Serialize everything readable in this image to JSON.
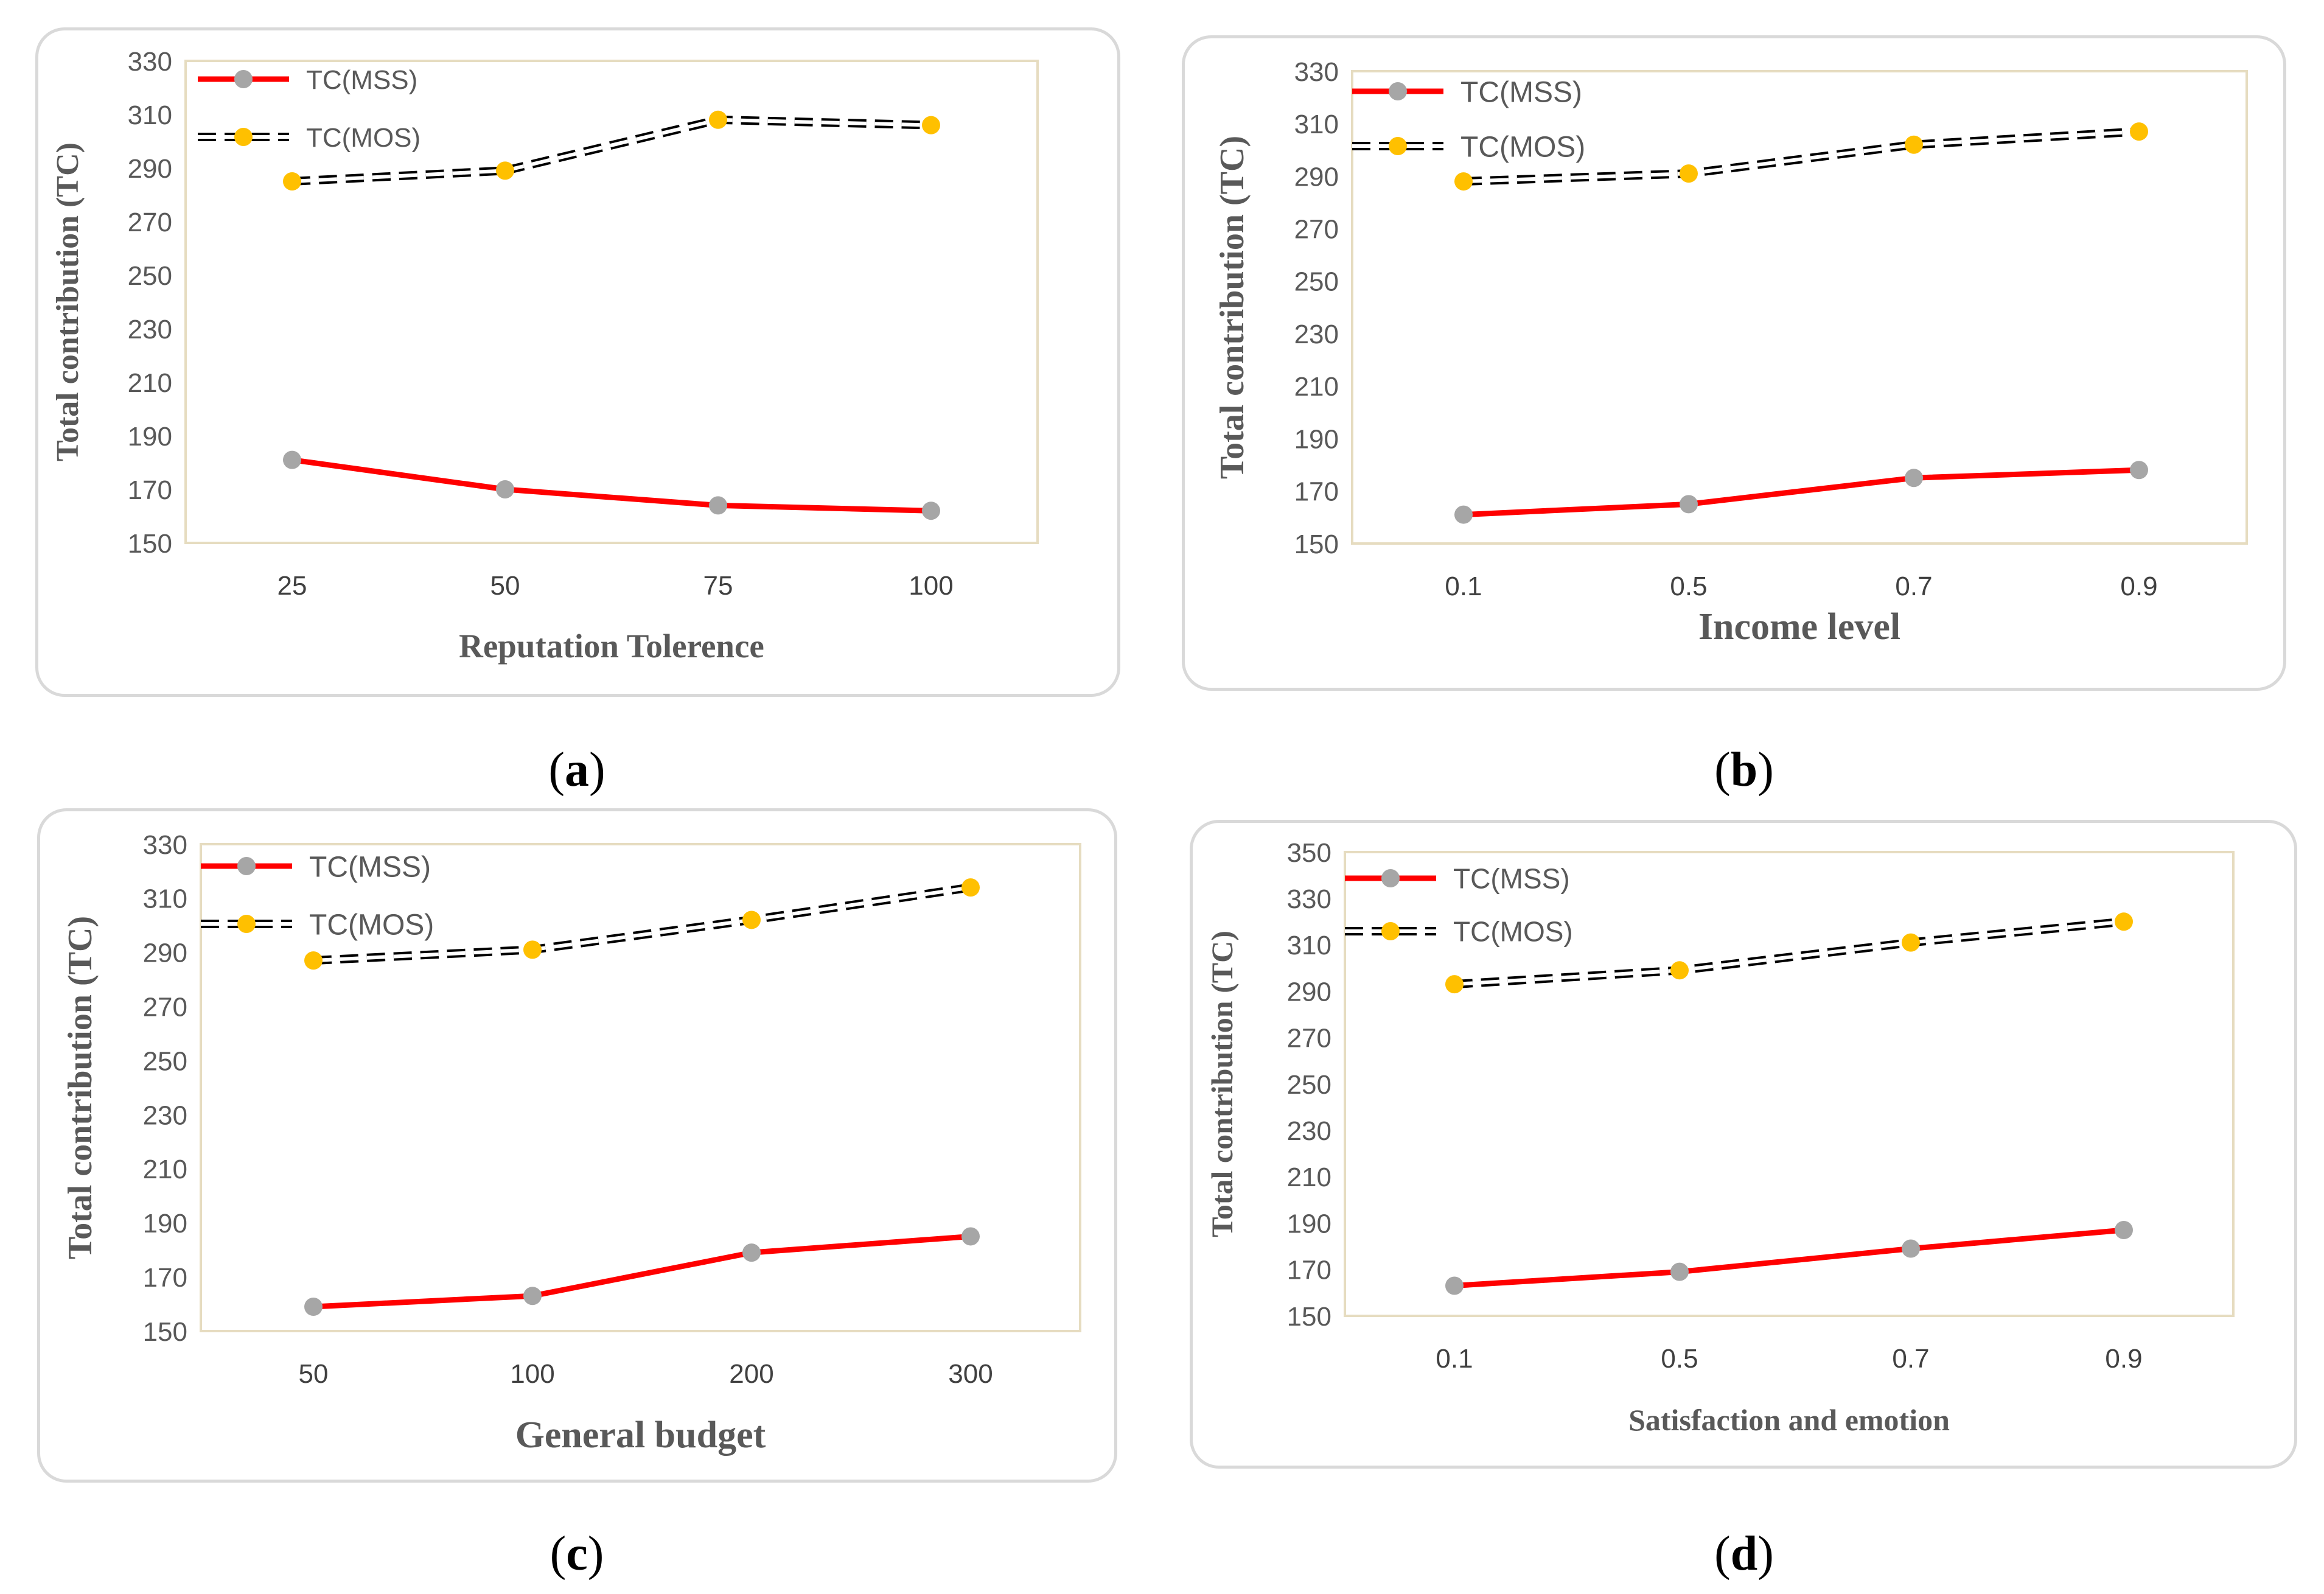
{
  "colors": {
    "mss_line": "#ff0000",
    "mss_marker": "#a6a6a6",
    "mos_line": "#000000",
    "mos_marker": "#ffc000",
    "plot_border": "#e6dcc0",
    "axis_text": "#595959"
  },
  "chart_data": [
    {
      "id": "a",
      "type": "line",
      "caption_label": "a",
      "xlabel": "Reputation Tolerence",
      "ylabel": "Total contribution (TC)",
      "categories": [
        "25",
        "50",
        "75",
        "100"
      ],
      "ylim": [
        150,
        330
      ],
      "yticks": [
        "150",
        "170",
        "190",
        "210",
        "230",
        "250",
        "270",
        "290",
        "310",
        "330"
      ],
      "legend_position": "top-left",
      "series": [
        {
          "name": "TC(MSS)",
          "style": "solid-red",
          "values": [
            181,
            170,
            164,
            162
          ]
        },
        {
          "name": "TC(MOS)",
          "style": "dashed-black",
          "values": [
            285,
            289,
            308,
            306
          ]
        }
      ]
    },
    {
      "id": "b",
      "type": "line",
      "caption_label": "b",
      "xlabel": "Income level",
      "ylabel": "Total contribution (TC)",
      "categories": [
        "0.1",
        "0.5",
        "0.7",
        "0.9"
      ],
      "ylim": [
        150,
        330
      ],
      "yticks": [
        "150",
        "170",
        "190",
        "210",
        "230",
        "250",
        "270",
        "290",
        "310",
        "330"
      ],
      "legend_position": "top-left",
      "series": [
        {
          "name": "TC(MSS)",
          "style": "solid-red",
          "values": [
            161,
            165,
            175,
            178
          ]
        },
        {
          "name": "TC(MOS)",
          "style": "dashed-black",
          "values": [
            288,
            291,
            302,
            307
          ]
        }
      ]
    },
    {
      "id": "c",
      "type": "line",
      "caption_label": "c",
      "xlabel": "General budget",
      "ylabel": "Total contribution (TC)",
      "categories": [
        "50",
        "100",
        "200",
        "300"
      ],
      "ylim": [
        150,
        330
      ],
      "yticks": [
        "150",
        "170",
        "190",
        "210",
        "230",
        "250",
        "270",
        "290",
        "310",
        "330"
      ],
      "legend_position": "top-left",
      "series": [
        {
          "name": "TC(MSS)",
          "style": "solid-red",
          "values": [
            159,
            163,
            179,
            185
          ]
        },
        {
          "name": "TC(MOS)",
          "style": "dashed-black",
          "values": [
            287,
            291,
            302,
            314
          ]
        }
      ]
    },
    {
      "id": "d",
      "type": "line",
      "caption_label": "d",
      "xlabel": "Satisfaction and emotion",
      "ylabel": "Total contribution (TC)",
      "categories": [
        "0.1",
        "0.5",
        "0.7",
        "0.9"
      ],
      "ylim": [
        150,
        350
      ],
      "yticks": [
        "150",
        "170",
        "190",
        "210",
        "230",
        "250",
        "270",
        "290",
        "310",
        "330",
        "350"
      ],
      "legend_position": "top-left",
      "series": [
        {
          "name": "TC(MSS)",
          "style": "solid-red",
          "values": [
            163,
            169,
            179,
            187
          ]
        },
        {
          "name": "TC(MOS)",
          "style": "dashed-black",
          "values": [
            293,
            299,
            311,
            320
          ]
        }
      ]
    }
  ]
}
